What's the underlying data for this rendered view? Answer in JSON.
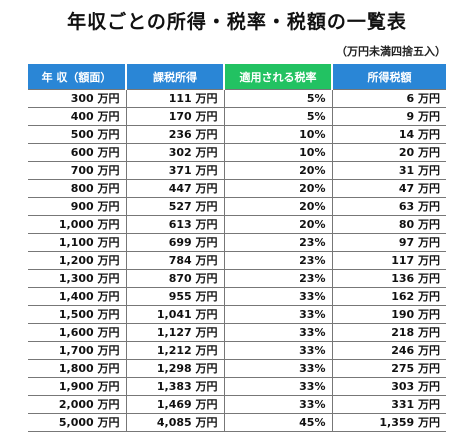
{
  "title": "年収ごとの所得・税率・税額の一覧表",
  "note": "（万円未満四捨五入）",
  "colors": {
    "header_blue": "#2a86d6",
    "header_green": "#22c262"
  },
  "headers": [
    "年 収（額面）",
    "課税所得",
    "適用される税率",
    "所得税額"
  ],
  "rows": [
    [
      "300 万円",
      "111 万円",
      "5%",
      "6 万円"
    ],
    [
      "400 万円",
      "170 万円",
      "5%",
      "9 万円"
    ],
    [
      "500 万円",
      "236 万円",
      "10%",
      "14 万円"
    ],
    [
      "600 万円",
      "302 万円",
      "10%",
      "20 万円"
    ],
    [
      "700 万円",
      "371 万円",
      "20%",
      "31 万円"
    ],
    [
      "800 万円",
      "447 万円",
      "20%",
      "47 万円"
    ],
    [
      "900 万円",
      "527 万円",
      "20%",
      "63 万円"
    ],
    [
      "1,000 万円",
      "613 万円",
      "20%",
      "80 万円"
    ],
    [
      "1,100 万円",
      "699 万円",
      "23%",
      "97 万円"
    ],
    [
      "1,200 万円",
      "784 万円",
      "23%",
      "117 万円"
    ],
    [
      "1,300 万円",
      "870 万円",
      "23%",
      "136 万円"
    ],
    [
      "1,400 万円",
      "955 万円",
      "33%",
      "162 万円"
    ],
    [
      "1,500 万円",
      "1,041 万円",
      "33%",
      "190 万円"
    ],
    [
      "1,600 万円",
      "1,127 万円",
      "33%",
      "218 万円"
    ],
    [
      "1,700 万円",
      "1,212 万円",
      "33%",
      "246 万円"
    ],
    [
      "1,800 万円",
      "1,298 万円",
      "33%",
      "275 万円"
    ],
    [
      "1,900 万円",
      "1,383 万円",
      "33%",
      "303 万円"
    ],
    [
      "2,000 万円",
      "1,469 万円",
      "33%",
      "331 万円"
    ],
    [
      "5,000 万円",
      "4,085 万円",
      "45%",
      "1,359 万円"
    ]
  ]
}
